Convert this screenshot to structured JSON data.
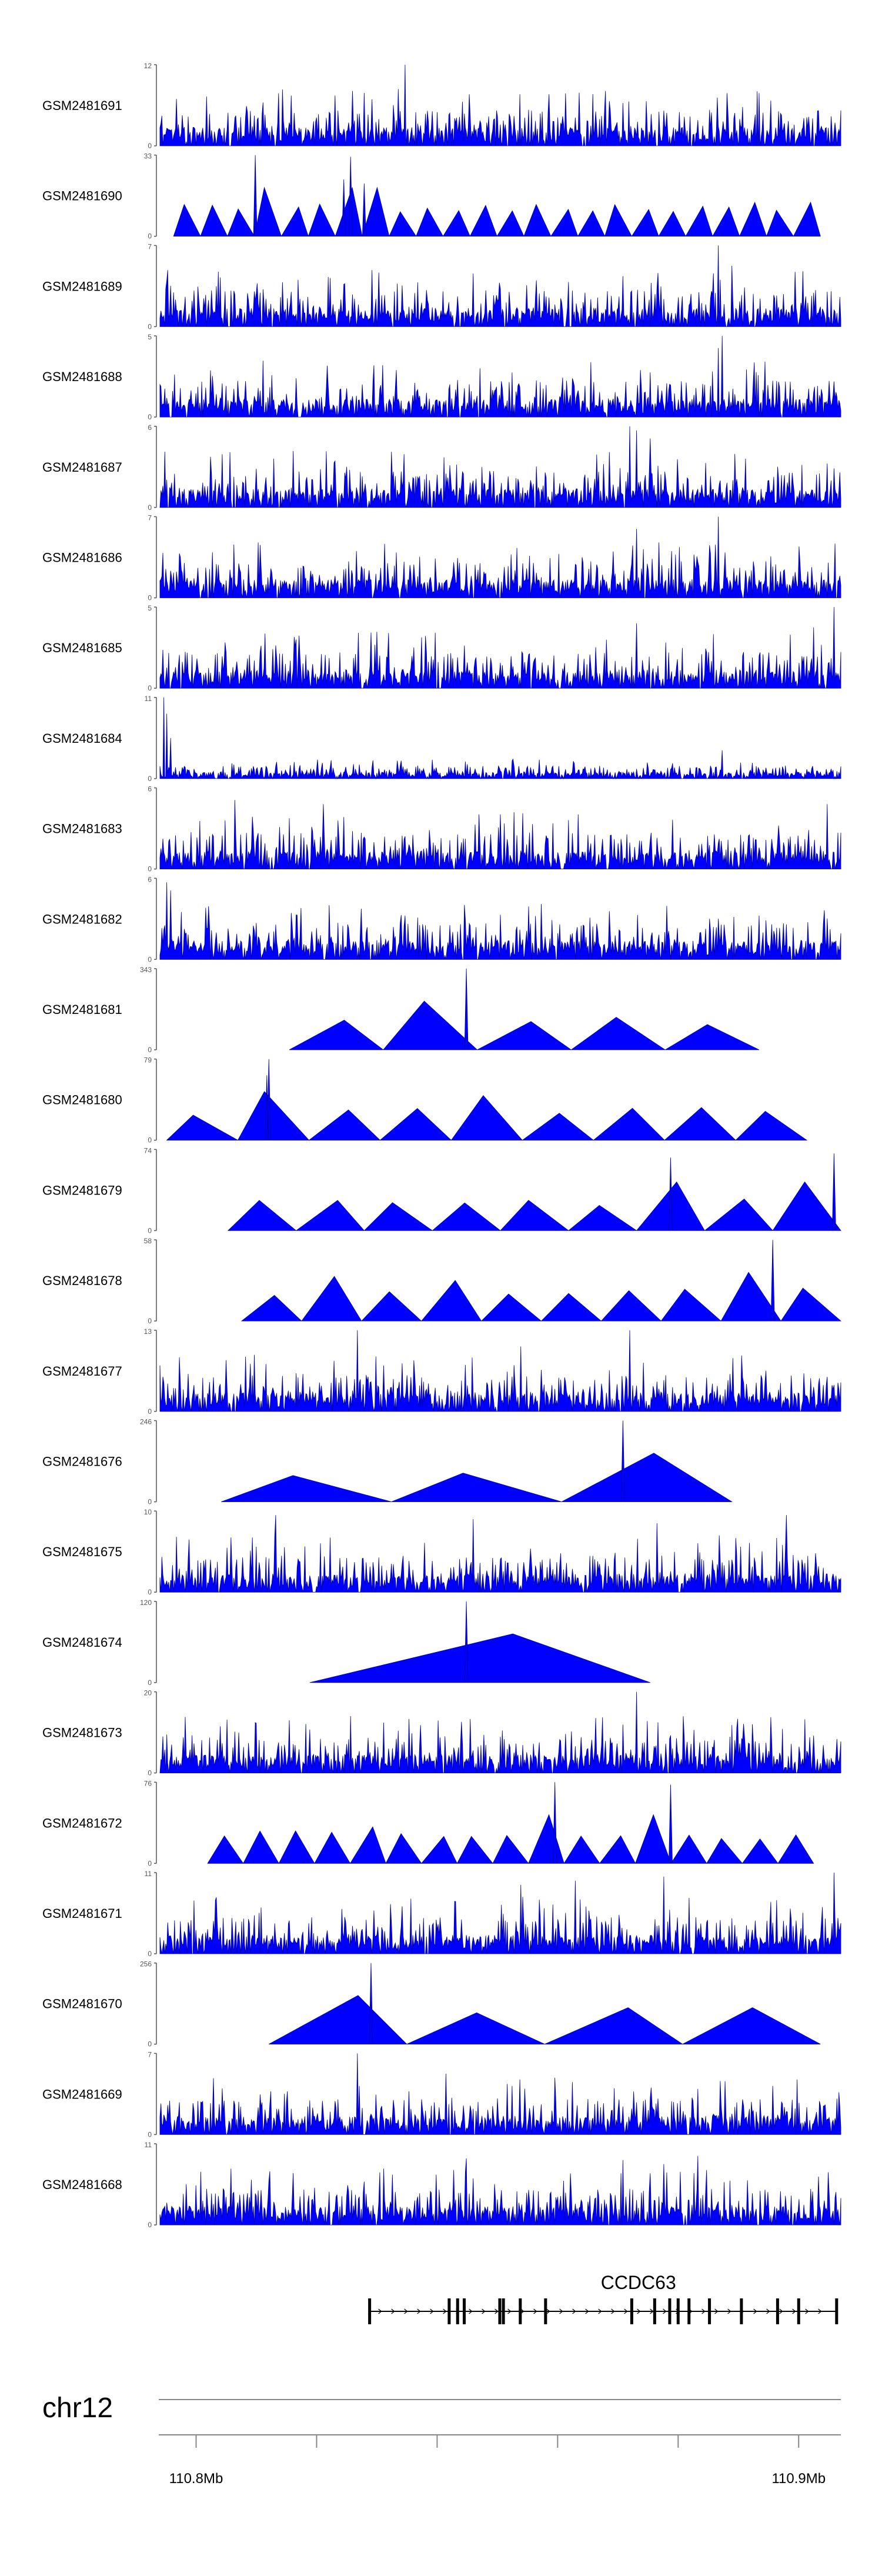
{
  "chart_data": {
    "type": "area",
    "title": "",
    "region": {
      "chromosome": "chr12",
      "ticks": [
        {
          "value": 110.8,
          "label": "110.8Mb"
        },
        {
          "value": 110.82,
          "label": ""
        },
        {
          "value": 110.84,
          "label": ""
        },
        {
          "value": 110.86,
          "label": ""
        },
        {
          "value": 110.88,
          "label": ""
        },
        {
          "value": 110.9,
          "label": "110.9Mb"
        }
      ],
      "view_start_mb": 110.794,
      "view_end_mb": 110.907
    },
    "colors": {
      "track_fill": "#0000ff",
      "track_stroke": "#00009a",
      "axis": "#555555",
      "gene": "#000000",
      "ideogram": "#888888"
    },
    "tracks": [
      {
        "name": "GSM2481691",
        "ymax": 12,
        "style": "dense",
        "start": 0.0,
        "end": 1.0,
        "peaks": [
          [
            0.36,
            1.0
          ],
          [
            0.35,
            0.7
          ],
          [
            0.88,
            0.65
          ],
          [
            0.66,
            0.55
          ]
        ]
      },
      {
        "name": "GSM2481690",
        "ymax": 33,
        "style": "tri",
        "start": 0.02,
        "end": 0.97,
        "tri_count": 24,
        "peaks": [
          [
            0.14,
            1.0
          ],
          [
            0.28,
            0.98
          ],
          [
            0.27,
            0.7
          ],
          [
            0.3,
            0.65
          ]
        ]
      },
      {
        "name": "GSM2481689",
        "ymax": 7,
        "style": "dense",
        "start": 0.0,
        "end": 1.0,
        "peaks": [
          [
            0.82,
            1.0
          ],
          [
            0.84,
            0.75
          ],
          [
            0.25,
            0.6
          ],
          [
            0.6,
            0.55
          ]
        ]
      },
      {
        "name": "GSM2481688",
        "ymax": 5,
        "style": "dense",
        "start": 0.0,
        "end": 1.0,
        "peaks": [
          [
            0.825,
            1.0
          ],
          [
            0.82,
            0.85
          ],
          [
            0.47,
            0.6
          ],
          [
            0.72,
            0.55
          ]
        ]
      },
      {
        "name": "GSM2481687",
        "ymax": 6,
        "style": "dense",
        "start": 0.0,
        "end": 1.0,
        "peaks": [
          [
            0.69,
            1.0
          ],
          [
            0.7,
            0.95
          ],
          [
            0.72,
            0.85
          ],
          [
            0.86,
            0.6
          ]
        ]
      },
      {
        "name": "GSM2481686",
        "ymax": 7,
        "style": "dense",
        "start": 0.0,
        "end": 1.0,
        "peaks": [
          [
            0.82,
            1.0
          ],
          [
            0.7,
            0.85
          ],
          [
            0.71,
            0.6
          ],
          [
            0.62,
            0.5
          ]
        ]
      },
      {
        "name": "GSM2481685",
        "ymax": 5,
        "style": "dense",
        "start": 0.0,
        "end": 1.0,
        "peaks": [
          [
            0.99,
            1.0
          ],
          [
            0.7,
            0.8
          ],
          [
            0.96,
            0.75
          ],
          [
            0.2,
            0.6
          ]
        ]
      },
      {
        "name": "GSM2481684",
        "ymax": 11,
        "style": "dense",
        "start": 0.0,
        "end": 1.0,
        "low": true,
        "peaks": [
          [
            0.005,
            1.0
          ],
          [
            0.01,
            0.8
          ],
          [
            0.015,
            0.5
          ],
          [
            0.825,
            0.35
          ]
        ]
      },
      {
        "name": "GSM2481683",
        "ymax": 6,
        "style": "dense",
        "start": 0.0,
        "end": 1.0,
        "peaks": [
          [
            0.11,
            0.85
          ],
          [
            0.24,
            0.8
          ],
          [
            0.52,
            0.7
          ],
          [
            0.98,
            0.8
          ]
        ]
      },
      {
        "name": "GSM2481682",
        "ymax": 6,
        "style": "dense",
        "start": 0.0,
        "end": 1.0,
        "peaks": [
          [
            0.01,
            0.95
          ],
          [
            0.015,
            0.85
          ],
          [
            0.5,
            0.55
          ],
          [
            0.82,
            0.5
          ]
        ]
      },
      {
        "name": "GSM2481681",
        "ymax": 343,
        "style": "tri",
        "start": 0.19,
        "end": 0.88,
        "tri_count": 5,
        "peaks": [
          [
            0.45,
            1.0
          ],
          [
            0.41,
            0.2
          ],
          [
            0.72,
            0.2
          ]
        ]
      },
      {
        "name": "GSM2481680",
        "ymax": 79,
        "style": "tri",
        "start": 0.01,
        "end": 0.95,
        "tri_count": 9,
        "peaks": [
          [
            0.16,
            1.0
          ],
          [
            0.157,
            0.8
          ],
          [
            0.165,
            0.55
          ],
          [
            0.51,
            0.55
          ]
        ]
      },
      {
        "name": "GSM2481679",
        "ymax": 74,
        "style": "tri",
        "start": 0.1,
        "end": 1.0,
        "tri_count": 9,
        "peaks": [
          [
            0.75,
            0.9
          ],
          [
            0.99,
            0.95
          ],
          [
            0.91,
            0.5
          ]
        ]
      },
      {
        "name": "GSM2481678",
        "ymax": 58,
        "style": "tri",
        "start": 0.12,
        "end": 1.0,
        "tri_count": 10,
        "peaks": [
          [
            0.9,
            1.0
          ],
          [
            0.39,
            0.5
          ],
          [
            0.29,
            0.55
          ]
        ]
      },
      {
        "name": "GSM2481677",
        "ymax": 13,
        "style": "dense",
        "start": 0.0,
        "end": 1.0,
        "peaks": [
          [
            0.29,
            1.0
          ],
          [
            0.69,
            1.0
          ],
          [
            0.53,
            0.8
          ],
          [
            0.71,
            0.6
          ]
        ]
      },
      {
        "name": "GSM2481676",
        "ymax": 246,
        "style": "tri",
        "start": 0.09,
        "end": 0.84,
        "tri_count": 3,
        "peaks": [
          [
            0.68,
            1.0
          ]
        ]
      },
      {
        "name": "GSM2481675",
        "ymax": 10,
        "style": "dense",
        "start": 0.0,
        "end": 1.0,
        "peaks": [
          [
            0.17,
            0.95
          ],
          [
            0.46,
            0.9
          ],
          [
            0.92,
            0.95
          ],
          [
            0.73,
            0.85
          ]
        ]
      },
      {
        "name": "GSM2481674",
        "ymax": 120,
        "style": "tri",
        "start": 0.22,
        "end": 0.72,
        "tri_count": 1,
        "peaks": [
          [
            0.45,
            1.0
          ]
        ]
      },
      {
        "name": "GSM2481673",
        "ymax": 20,
        "style": "dense",
        "start": 0.0,
        "end": 1.0,
        "peaks": [
          [
            0.7,
            1.0
          ],
          [
            0.28,
            0.7
          ],
          [
            0.7,
            0.55
          ],
          [
            0.8,
            0.4
          ]
        ]
      },
      {
        "name": "GSM2481672",
        "ymax": 76,
        "style": "tri",
        "start": 0.07,
        "end": 0.96,
        "tri_count": 17,
        "peaks": [
          [
            0.58,
            1.0
          ],
          [
            0.75,
            0.97
          ],
          [
            0.33,
            0.45
          ]
        ]
      },
      {
        "name": "GSM2481671",
        "ymax": 11,
        "style": "dense",
        "start": 0.0,
        "end": 1.0,
        "peaks": [
          [
            0.99,
            1.0
          ],
          [
            0.74,
            0.95
          ],
          [
            0.53,
            0.85
          ],
          [
            0.61,
            0.9
          ]
        ]
      },
      {
        "name": "GSM2481670",
        "ymax": 256,
        "style": "tri",
        "start": 0.16,
        "end": 0.97,
        "tri_count": 4,
        "peaks": [
          [
            0.31,
            1.0
          ],
          [
            0.69,
            0.45
          ],
          [
            0.94,
            0.45
          ]
        ]
      },
      {
        "name": "GSM2481669",
        "ymax": 7,
        "style": "dense",
        "start": 0.0,
        "end": 1.0,
        "peaks": [
          [
            0.29,
            1.0
          ],
          [
            0.42,
            0.75
          ],
          [
            0.58,
            0.7
          ],
          [
            0.9,
            0.6
          ]
        ]
      },
      {
        "name": "GSM2481668",
        "ymax": 11,
        "style": "dense",
        "start": 0.0,
        "end": 1.0,
        "peaks": [
          [
            0.45,
            0.82
          ],
          [
            0.68,
            0.8
          ],
          [
            0.74,
            0.75
          ],
          [
            0.79,
            0.85
          ]
        ]
      }
    ],
    "gene": {
      "name": "CCDC63",
      "start_mb": 110.8288,
      "end_mb": 110.9063,
      "exons_mb": [
        110.8288,
        110.842,
        110.8434,
        110.8445,
        110.8504,
        110.851,
        110.8538,
        110.858,
        110.8723,
        110.8761,
        110.8786,
        110.88,
        110.8818,
        110.8852,
        110.8905,
        110.8965,
        110.9,
        110.9063
      ]
    }
  }
}
